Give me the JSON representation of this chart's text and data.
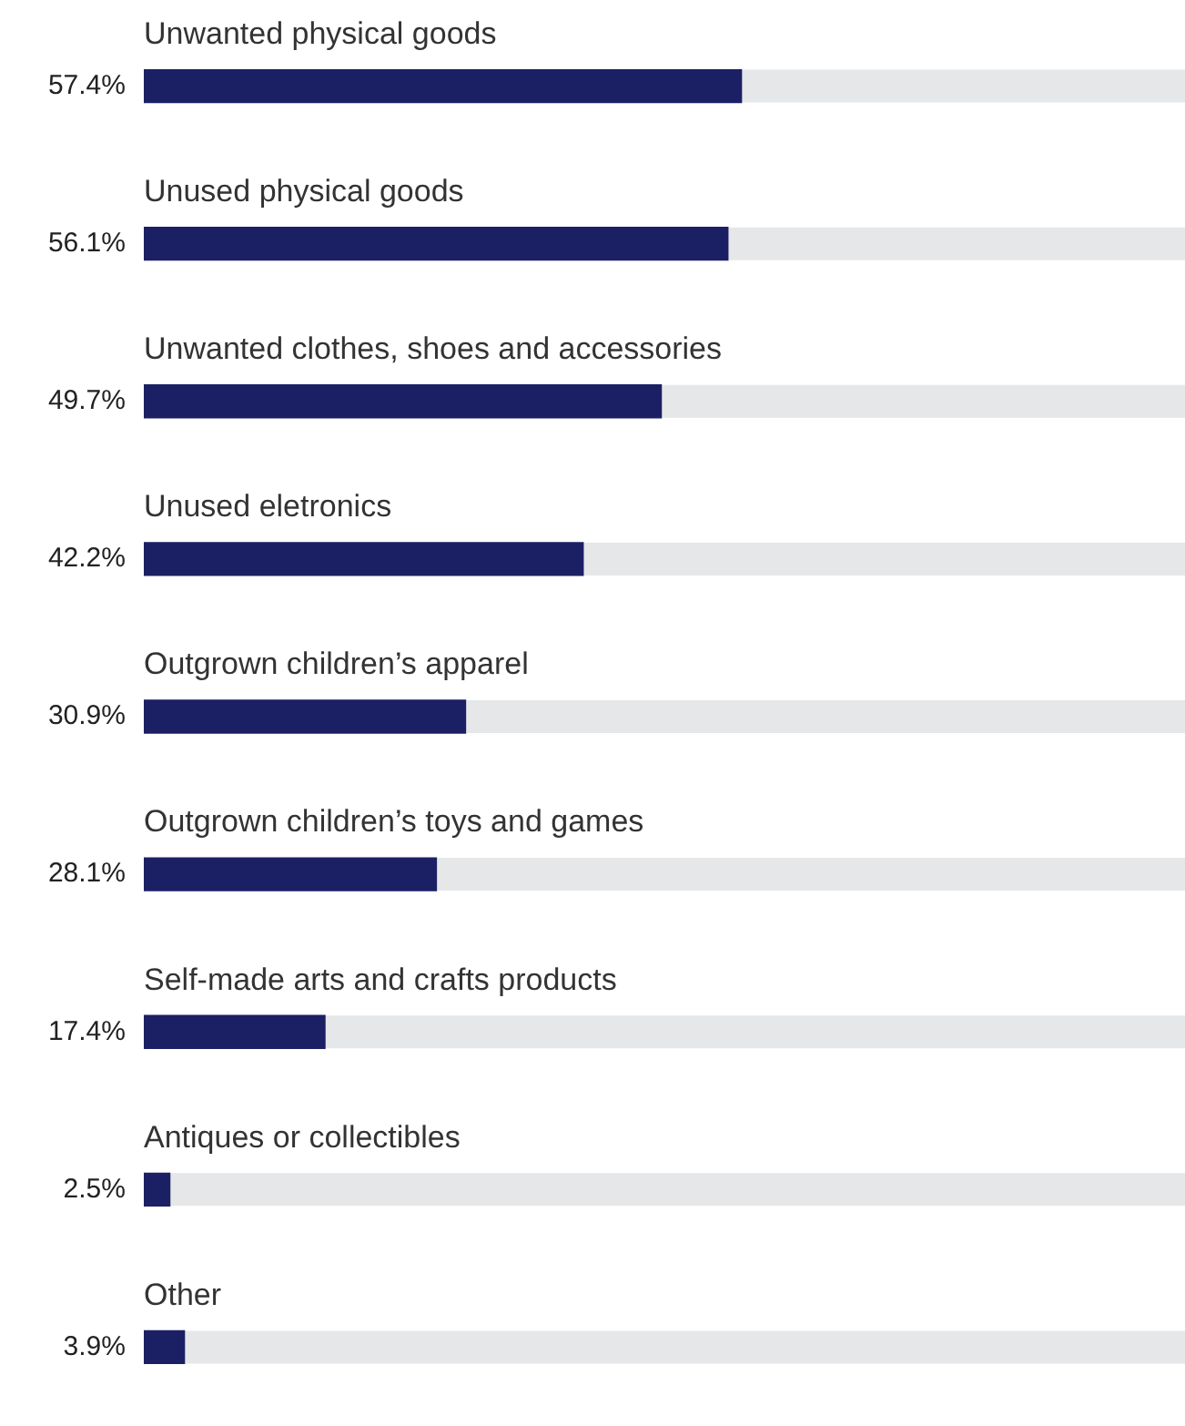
{
  "chart_data": {
    "type": "bar",
    "orientation": "horizontal",
    "categories": [
      "Unwanted physical goods",
      "Unused physical goods",
      "Unwanted clothes, shoes and accessories",
      "Unused eletronics",
      "Outgrown children’s apparel",
      "Outgrown children’s toys and games",
      "Self-made arts and crafts products",
      "Antiques or collectibles",
      "Other"
    ],
    "values": [
      57.4,
      56.1,
      49.7,
      42.2,
      30.9,
      28.1,
      17.4,
      2.5,
      3.9
    ],
    "value_labels": [
      "57.4%",
      "56.1%",
      "49.7%",
      "42.2%",
      "30.9%",
      "28.1%",
      "17.4%",
      "2.5%",
      "3.9%"
    ],
    "color": "#1b2065",
    "xlim": [
      0,
      100
    ],
    "tick_labels": false,
    "legend": false
  }
}
